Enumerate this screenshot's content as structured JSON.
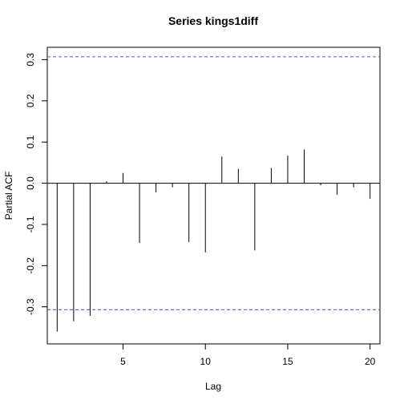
{
  "chart_data": {
    "type": "bar",
    "title": "Series  kings1diff",
    "xlabel": "Lag",
    "ylabel": "Partial ACF",
    "xlim": [
      0.4,
      20.6
    ],
    "ylim": [
      -0.39,
      0.33
    ],
    "x_ticks": [
      5,
      10,
      15,
      20
    ],
    "y_ticks": [
      -0.3,
      -0.2,
      -0.1,
      0.0,
      0.1,
      0.2,
      0.3
    ],
    "y_tick_labels": [
      "-0.3",
      "-0.2",
      "-0.1",
      "0.0",
      "0.1",
      "0.2",
      "0.3"
    ],
    "x": [
      1,
      2,
      3,
      4,
      5,
      6,
      7,
      8,
      9,
      10,
      11,
      12,
      13,
      14,
      15,
      16,
      17,
      18,
      19,
      20
    ],
    "values": [
      -0.36,
      -0.335,
      -0.322,
      0.005,
      0.025,
      -0.145,
      -0.022,
      -0.01,
      -0.143,
      -0.168,
      0.065,
      0.035,
      -0.163,
      0.037,
      0.067,
      0.082,
      -0.005,
      -0.028,
      -0.01,
      -0.038
    ],
    "confidence_limits": [
      0.307,
      -0.307
    ],
    "confidence_color": "#6a6ae0",
    "grid": false
  }
}
